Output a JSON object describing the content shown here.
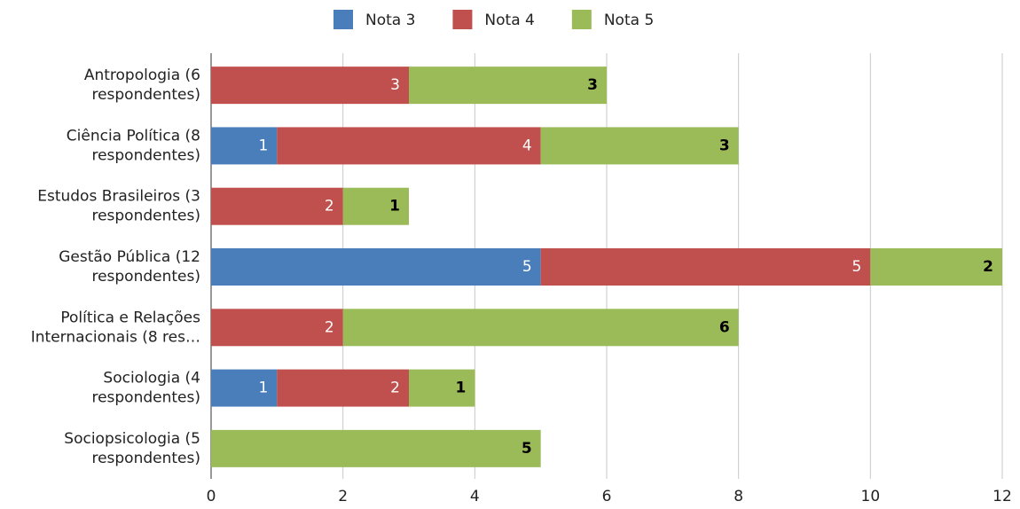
{
  "chart_data": {
    "type": "bar",
    "orientation": "horizontal",
    "stacked": true,
    "categories": [
      "Antropologia (6 respondentes)",
      "Ciência Política (8 respondentes)",
      "Estudos Brasileiros (3 respondentes)",
      "Gestão Pública (12 respondentes)",
      "Política e Relações Internacionais (8 res…",
      "Sociologia (4 respondentes)",
      "Sociopsicologia (5 respondentes)"
    ],
    "series": [
      {
        "name": "Nota 3",
        "color": "#4a7ebb",
        "values": [
          null,
          1,
          null,
          5,
          null,
          1,
          null
        ]
      },
      {
        "name": "Nota 4",
        "color": "#c0504d",
        "values": [
          3,
          4,
          2,
          5,
          2,
          2,
          null
        ]
      },
      {
        "name": "Nota 5",
        "color": "#9bbb59",
        "values": [
          3,
          3,
          1,
          2,
          6,
          1,
          5
        ]
      }
    ],
    "xlim": [
      0,
      12
    ],
    "xticks": [
      0,
      2,
      4,
      6,
      8,
      10,
      12
    ],
    "grid": true,
    "legend": "top"
  }
}
